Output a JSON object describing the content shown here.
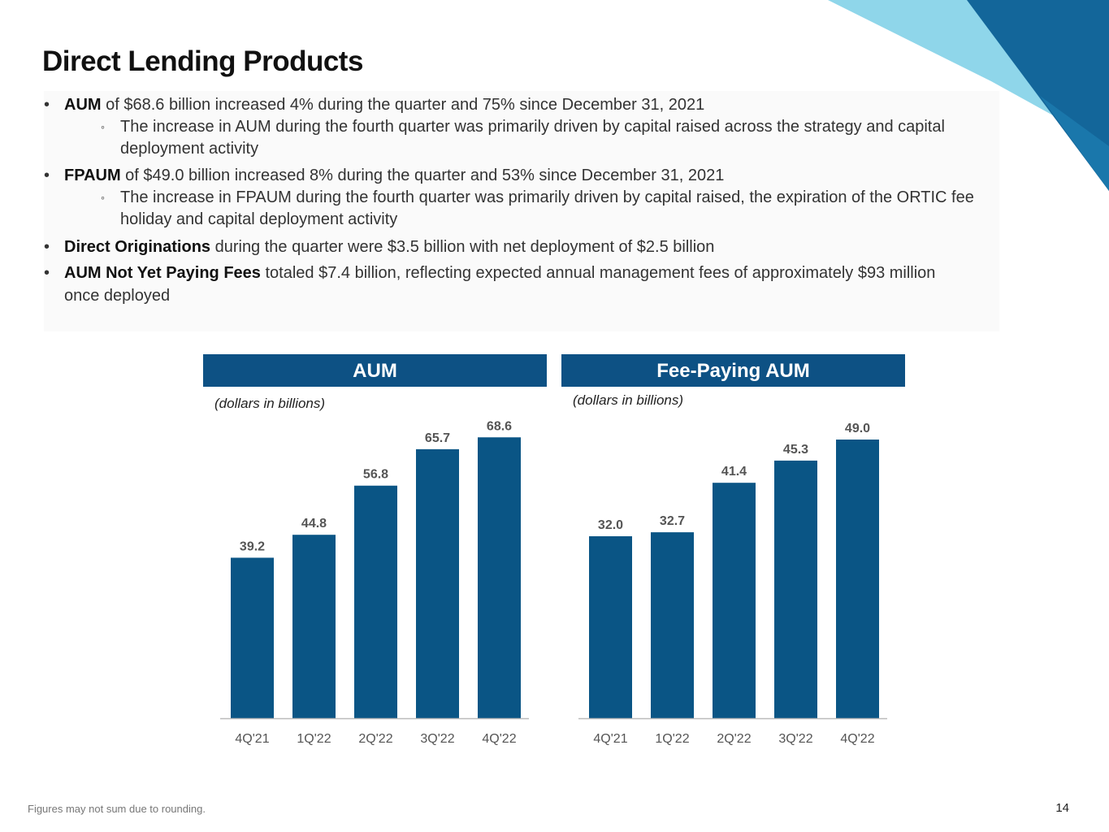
{
  "title": "Direct Lending Products",
  "bullets": [
    {
      "bold": "AUM",
      "text": " of $68.6 billion increased 4% during the quarter and 75% since December 31, 2021",
      "sub": [
        "The increase in AUM during the fourth quarter was primarily driven by capital raised across the strategy and capital",
        "deployment activity"
      ]
    },
    {
      "bold": "FPAUM",
      "text": " of $49.0 billion increased 8% during the quarter and 53% since December 31, 2021",
      "sub": [
        "The increase in FPAUM during the fourth quarter was primarily driven by capital raised, the expiration of the ORTIC fee",
        "holiday and capital deployment activity"
      ]
    },
    {
      "bold": "Direct Originations",
      "text": " during the quarter were $3.5 billion with net deployment of $2.5 billion"
    },
    {
      "bold": "AUM Not Yet Paying Fees",
      "text": " totaled $7.4 billion, reflecting expected annual management fees of approximately $93 million",
      "text2": "once deployed"
    }
  ],
  "bullet_char": "•",
  "sub_bullet_char": "◦",
  "chart_data": [
    {
      "type": "bar",
      "title": "AUM",
      "unit_note": "(dollars in billions)",
      "categories": [
        "4Q'21",
        "1Q'22",
        "2Q'22",
        "3Q'22",
        "4Q'22"
      ],
      "values": [
        39.2,
        44.8,
        56.8,
        65.7,
        68.6
      ],
      "labels": [
        "39.2",
        "44.8",
        "56.8",
        "65.7",
        "68.6"
      ],
      "ylim": [
        0,
        75
      ],
      "color": "#0a5585"
    },
    {
      "type": "bar",
      "title": "Fee-Paying AUM",
      "unit_note": "(dollars in billions)",
      "categories": [
        "4Q'21",
        "1Q'22",
        "2Q'22",
        "3Q'22",
        "4Q'22"
      ],
      "values": [
        32.0,
        32.7,
        41.4,
        45.3,
        49.0
      ],
      "labels": [
        "32.0",
        "32.7",
        "41.4",
        "45.3",
        "49.0"
      ],
      "ylim": [
        0,
        54
      ],
      "color": "#0a5585"
    }
  ],
  "footnote": "Figures may not sum due to rounding.",
  "page_number": "14",
  "colors": {
    "header": "#0d5184",
    "bar": "#0a5585",
    "corner_light": "#8fd6ea",
    "corner_dark": "#13669a"
  }
}
